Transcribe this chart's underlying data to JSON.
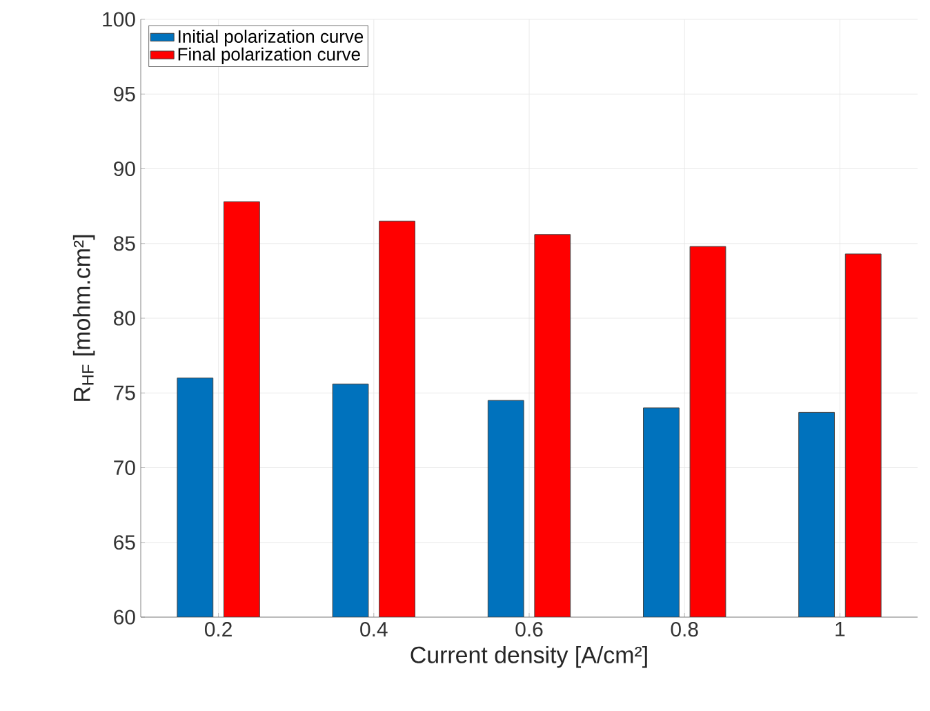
{
  "chart_data": {
    "type": "bar",
    "xlabel": "Current density [A/cm²]",
    "ylabel": "R$_{HF}$ [mohm.cm²]",
    "categories": [
      "0.2",
      "0.4",
      "0.6",
      "0.8",
      "1"
    ],
    "series": [
      {
        "name": "Initial polarization curve",
        "color": "#0072bd",
        "values": [
          76.0,
          75.6,
          74.5,
          74.0,
          73.7
        ]
      },
      {
        "name": "Final polarization curve",
        "color": "#ff0000",
        "values": [
          87.8,
          86.5,
          85.6,
          84.8,
          84.3
        ]
      }
    ],
    "ylim": [
      60,
      100
    ],
    "yticks": [
      60,
      65,
      70,
      75,
      80,
      85,
      90,
      95,
      100
    ],
    "grid": true,
    "legend": "top left"
  }
}
